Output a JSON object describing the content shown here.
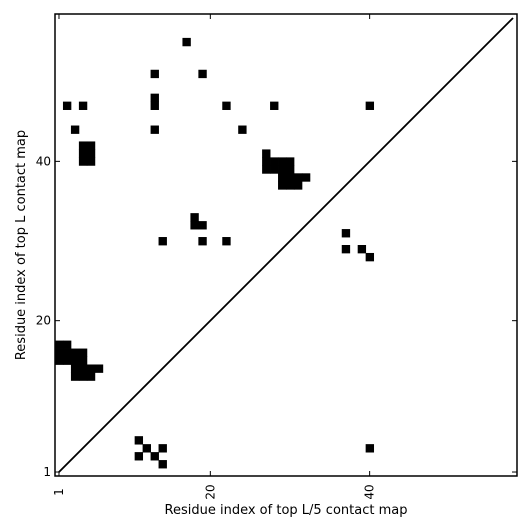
{
  "chart_data": {
    "type": "heatmap",
    "title": "",
    "xlabel": "Residue index of top L/5 contact map",
    "ylabel": "Residue index of top L contact map",
    "xlim": [
      0.5,
      58.5
    ],
    "ylim": [
      0.5,
      58.5
    ],
    "x_ticks": [
      1,
      20,
      40
    ],
    "y_ticks": [
      1,
      20,
      40
    ],
    "diagonal": [
      [
        1,
        1
      ],
      [
        58,
        58
      ]
    ],
    "cell_color": "#000000",
    "diagonal_color": "#000000",
    "upper_contacts": [
      [
        17,
        55
      ],
      [
        13,
        51
      ],
      [
        19,
        51
      ],
      [
        2,
        47
      ],
      [
        4,
        47
      ],
      [
        13,
        47
      ],
      [
        13,
        48
      ],
      [
        22,
        47
      ],
      [
        28,
        47
      ],
      [
        40,
        47
      ],
      [
        3,
        44
      ],
      [
        13,
        44
      ],
      [
        24,
        44
      ],
      [
        4,
        42
      ],
      [
        5,
        42
      ],
      [
        4,
        41
      ],
      [
        5,
        41
      ],
      [
        4,
        40
      ],
      [
        5,
        40
      ],
      [
        27,
        41
      ],
      [
        27,
        40
      ],
      [
        28,
        40
      ],
      [
        29,
        40
      ],
      [
        30,
        40
      ],
      [
        27,
        39
      ],
      [
        28,
        39
      ],
      [
        29,
        39
      ],
      [
        30,
        39
      ],
      [
        29,
        38
      ],
      [
        30,
        38
      ],
      [
        31,
        38
      ],
      [
        32,
        38
      ],
      [
        29,
        37
      ],
      [
        30,
        37
      ],
      [
        31,
        37
      ],
      [
        18,
        33
      ],
      [
        18,
        32
      ],
      [
        19,
        32
      ],
      [
        14,
        30
      ],
      [
        19,
        30
      ],
      [
        22,
        30
      ]
    ],
    "lower_contacts": [
      [
        37,
        31
      ],
      [
        37,
        29
      ],
      [
        39,
        29
      ],
      [
        40,
        28
      ],
      [
        1,
        17
      ],
      [
        2,
        17
      ],
      [
        1,
        16
      ],
      [
        2,
        16
      ],
      [
        3,
        16
      ],
      [
        4,
        16
      ],
      [
        1,
        15
      ],
      [
        2,
        15
      ],
      [
        3,
        15
      ],
      [
        4,
        15
      ],
      [
        3,
        14
      ],
      [
        4,
        14
      ],
      [
        5,
        14
      ],
      [
        6,
        14
      ],
      [
        3,
        13
      ],
      [
        4,
        13
      ],
      [
        5,
        13
      ],
      [
        11,
        5
      ],
      [
        12,
        4
      ],
      [
        14,
        4
      ],
      [
        11,
        3
      ],
      [
        13,
        3
      ],
      [
        14,
        2
      ],
      [
        40,
        4
      ]
    ]
  }
}
